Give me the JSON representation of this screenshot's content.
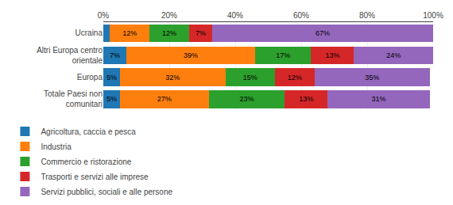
{
  "chart_data": {
    "type": "bar",
    "orientation": "horizontal",
    "stacked": true,
    "data_labels": true,
    "grid": true,
    "legend": "lower left",
    "categories": [
      "Ucraina",
      "Altri Europa centro\norientale",
      "Europa",
      "Totale Paesi non\ncomunitari"
    ],
    "series": [
      {
        "name": "Agricoltura, caccia e pesca",
        "values": [
          2,
          7,
          5,
          5
        ],
        "value_labels": [
          null,
          "7%",
          "5%",
          "5%"
        ]
      },
      {
        "name": "Industria",
        "values": [
          12,
          39,
          32,
          27
        ],
        "value_labels": [
          "12%",
          "39%",
          "32%",
          "27%"
        ]
      },
      {
        "name": "Commercio e ristorazione",
        "values": [
          12,
          17,
          15,
          23
        ],
        "value_labels": [
          "12%",
          "17%",
          "15%",
          "23%"
        ]
      },
      {
        "name": "Trasporti e servizi alle imprese",
        "values": [
          7,
          13,
          12,
          13
        ],
        "value_labels": [
          "7%",
          "13%",
          "12%",
          "13%"
        ]
      },
      {
        "name": "Servizi pubblici, sociali e alle persone",
        "values": [
          67,
          24,
          35,
          31
        ],
        "value_labels": [
          "67%",
          "24%",
          "35%",
          "31%"
        ]
      }
    ],
    "xlim": [
      0,
      100
    ],
    "xticks": [
      {
        "value": 0,
        "label": "0%"
      },
      {
        "value": 20,
        "label": "20%"
      },
      {
        "value": 40,
        "label": "40%"
      },
      {
        "value": 60,
        "label": "60%"
      },
      {
        "value": 80,
        "label": "80%"
      },
      {
        "value": 100,
        "label": "100%"
      }
    ]
  }
}
